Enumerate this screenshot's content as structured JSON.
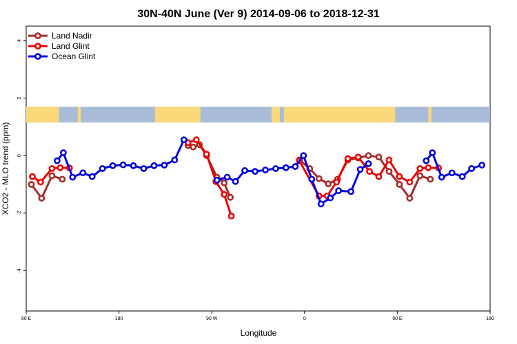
{
  "chart_data": {
    "type": "line",
    "title": "30N-40N June (Ver 9)   2014-09-06 to 2018-12-31",
    "xlabel": "Longitude",
    "ylabel": "XCO2 - MLO trend (ppm)",
    "xlim": [
      90,
      540
    ],
    "ylim": [
      -5.4,
      4.5
    ],
    "x_ticks": [
      {
        "value": 90,
        "label": "90 E"
      },
      {
        "value": 180,
        "label": "180"
      },
      {
        "value": 270,
        "label": "90 W"
      },
      {
        "value": 360,
        "label": "0"
      },
      {
        "value": 450,
        "label": "90 E"
      },
      {
        "value": 540,
        "label": "180"
      }
    ],
    "y_ticks": [
      {
        "value": -4,
        "label": "-4"
      },
      {
        "value": -2,
        "label": "-2"
      },
      {
        "value": 0,
        "label": "0"
      },
      {
        "value": 2,
        "label": "2"
      },
      {
        "value": 4,
        "label": "4"
      }
    ],
    "land_band": {
      "y_range": [
        1.15,
        1.7
      ],
      "ocean_color": "#a8bcd8",
      "land_color": "#fad97a",
      "land_segments": [
        [
          90,
          122
        ],
        [
          140,
          143
        ],
        [
          215,
          259
        ],
        [
          328,
          336
        ],
        [
          340,
          448
        ],
        [
          480,
          483
        ]
      ]
    },
    "legend": {
      "position": "top-left"
    },
    "series": [
      {
        "name": "Land Nadir",
        "color": "#a52a2a",
        "segments": [
          [
            [
              95,
              -1.0
            ],
            [
              105,
              -1.48
            ],
            [
              115,
              -0.7
            ],
            [
              125,
              -0.82
            ]
          ],
          [
            [
              247,
              0.35
            ],
            [
              252,
              0.3
            ],
            [
              258,
              0.38
            ],
            [
              265,
              0.0
            ],
            [
              275,
              -0.75
            ],
            [
              282,
              -0.95
            ],
            [
              288,
              -1.45
            ]
          ],
          [
            [
              355,
              -0.15
            ],
            [
              365,
              -0.45
            ],
            [
              374,
              -0.8
            ],
            [
              383,
              -0.98
            ],
            [
              392,
              -0.82
            ],
            [
              402,
              -0.15
            ],
            [
              412,
              -0.08
            ],
            [
              422,
              0.0
            ],
            [
              432,
              -0.05
            ],
            [
              442,
              -0.55
            ],
            [
              452,
              -1.0
            ],
            [
              462,
              -1.48
            ],
            [
              472,
              -0.7
            ],
            [
              482,
              -0.82
            ]
          ]
        ]
      },
      {
        "name": "Land Glint",
        "color": "#ee0000",
        "segments": [
          [
            [
              96,
              -0.73
            ],
            [
              104,
              -0.92
            ],
            [
              115,
              -0.45
            ],
            [
              123,
              -0.42
            ],
            [
              132,
              -0.43
            ]
          ],
          [
            [
              247,
              0.45
            ],
            [
              255,
              0.55
            ],
            [
              265,
              0.05
            ],
            [
              274,
              -0.9
            ],
            [
              282,
              -1.35
            ],
            [
              289,
              -2.1
            ]
          ],
          [
            [
              355,
              -0.18
            ],
            [
              374,
              -1.4
            ],
            [
              382,
              -1.4
            ],
            [
              391,
              -0.92
            ],
            [
              402,
              -0.1
            ],
            [
              412,
              -0.05
            ],
            [
              423,
              -0.55
            ],
            [
              432,
              -0.73
            ],
            [
              442,
              -0.15
            ],
            [
              452,
              -0.73
            ],
            [
              462,
              -0.92
            ],
            [
              472,
              -0.45
            ],
            [
              480,
              -0.42
            ],
            [
              490,
              -0.43
            ]
          ]
        ]
      },
      {
        "name": "Ocean Glint",
        "color": "#0000dd",
        "segments": [
          [
            [
              120,
              -0.18
            ],
            [
              126,
              0.1
            ],
            [
              135,
              -0.75
            ],
            [
              145,
              -0.6
            ],
            [
              154,
              -0.73
            ],
            [
              164,
              -0.45
            ],
            [
              174,
              -0.35
            ],
            [
              184,
              -0.32
            ],
            [
              194,
              -0.35
            ],
            [
              204,
              -0.45
            ],
            [
              214,
              -0.35
            ],
            [
              224,
              -0.33
            ],
            [
              234,
              -0.15
            ],
            [
              243,
              0.55
            ]
          ],
          [
            [
              275,
              -0.85
            ],
            [
              285,
              -0.75
            ],
            [
              293,
              -0.9
            ],
            [
              302,
              -0.52
            ],
            [
              312,
              -0.55
            ],
            [
              322,
              -0.5
            ],
            [
              332,
              -0.45
            ],
            [
              342,
              -0.42
            ],
            [
              351,
              -0.38
            ],
            [
              359,
              0.0
            ],
            [
              367,
              -0.82
            ],
            [
              376,
              -1.68
            ],
            [
              385,
              -1.47
            ],
            [
              393,
              -1.22
            ],
            [
              405,
              -1.25
            ],
            [
              414,
              -0.48
            ],
            [
              422,
              -0.28
            ]
          ],
          [
            [
              478,
              -0.18
            ],
            [
              484,
              0.1
            ],
            [
              493,
              -0.75
            ],
            [
              503,
              -0.6
            ],
            [
              513,
              -0.73
            ],
            [
              522,
              -0.45
            ],
            [
              532,
              -0.33
            ]
          ]
        ]
      }
    ]
  }
}
